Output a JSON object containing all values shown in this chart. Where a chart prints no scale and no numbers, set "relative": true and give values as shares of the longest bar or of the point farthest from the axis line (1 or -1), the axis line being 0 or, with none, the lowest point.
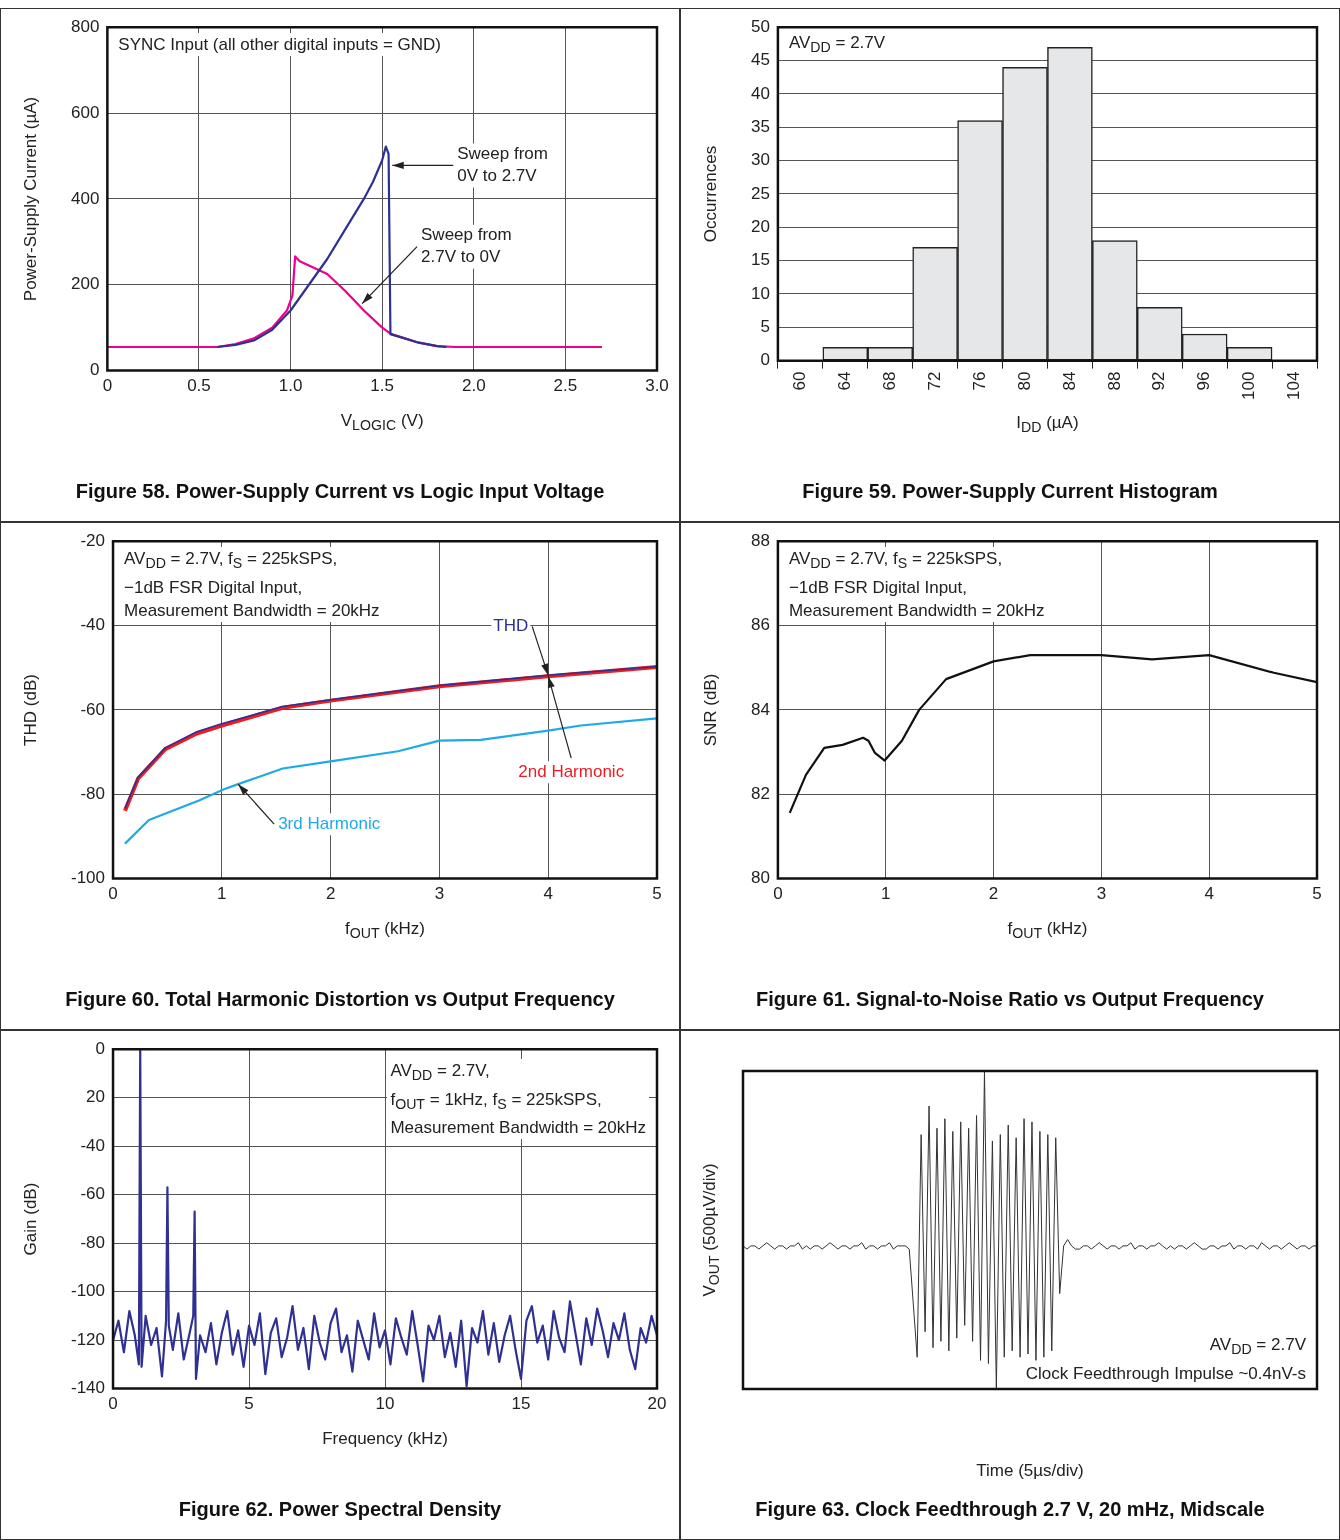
{
  "chart_data": [
    {
      "type": "line",
      "title": "Figure 58. Power-Supply Current vs Logic Input Voltage",
      "xlabel": "V$_{LOGIC}$ (V)",
      "ylabel": "Power-Supply Current (µA)",
      "series": [
        {
          "color": "#2e3192",
          "x": [
            0.6,
            0.7,
            0.8,
            0.9,
            1.0,
            1.1,
            1.2,
            1.3,
            1.4,
            1.45,
            1.5,
            1.52,
            1.535,
            1.545,
            1.6,
            1.7,
            1.8,
            1.85
          ],
          "values": [
            55,
            60,
            70,
            95,
            140,
            200,
            260,
            330,
            400,
            440,
            490,
            522,
            505,
            85,
            78,
            65,
            57,
            55
          ]
        },
        {
          "color": "#ec008c",
          "x": [
            0,
            0.6,
            0.7,
            0.8,
            0.9,
            0.98,
            1.01,
            1.025,
            1.05,
            1.1,
            1.2,
            1.3,
            1.4,
            1.5,
            1.55,
            1.7,
            1.8,
            1.9,
            2.7
          ],
          "values": [
            55,
            55,
            62,
            75,
            100,
            140,
            175,
            266,
            255,
            245,
            225,
            185,
            140,
            100,
            85,
            65,
            57,
            55,
            55
          ]
        }
      ],
      "xlim": [
        0,
        3
      ],
      "xticks": [
        0,
        0.5,
        {
          "value": 1,
          "label": "1.0"
        },
        1.5,
        {
          "value": 2,
          "label": "2.0"
        },
        2.5,
        {
          "value": 3,
          "label": "3.0"
        }
      ],
      "ylim": [
        0,
        800
      ],
      "yticks": [
        0,
        200,
        400,
        600,
        800
      ],
      "grid": true,
      "marker": "none",
      "annotations": [
        "SYNC Input (all other digital inputs = GND)",
        {
          "text": "Sweep from\n0V to 2.7V",
          "x": 1.555,
          "y": 478
        },
        {
          "text": "Sweep from\n2.7V to 0V",
          "x": 1.39,
          "y": 156
        }
      ]
    },
    {
      "type": "bar",
      "title": "Figure 59. Power-Supply Current Histogram",
      "xlabel": "I$_{DD}$ (µA)",
      "ylabel": "Occurrences",
      "categories": [
        "60",
        "64",
        "68",
        "72",
        "76",
        "80",
        "84",
        "88",
        "92",
        "96",
        "100",
        "104"
      ],
      "values": [
        0,
        2,
        2,
        17,
        36,
        44,
        47,
        18,
        8,
        4,
        2,
        0
      ],
      "color": "#e6e7e9",
      "ylim": [
        0,
        50
      ],
      "yticks": [
        0,
        5,
        10,
        15,
        20,
        25,
        30,
        35,
        40,
        45,
        50
      ],
      "grid": "y",
      "annotations": [
        "AV$_{DD}$ = 2.7V"
      ]
    },
    {
      "type": "line",
      "title": "Figure 60. Total Harmonic Distortion vs Output Frequency",
      "xlabel": "f$_{OUT}$ (kHz)",
      "ylabel": "THD (dB)",
      "x": [
        0.11,
        0.23,
        0.48,
        0.77,
        1.0,
        1.56,
        2.0,
        3.0,
        4.0,
        5.0
      ],
      "series": [
        {
          "name": "THD",
          "color": "#2e3192",
          "values": [
            -83.3,
            -76,
            -69,
            -65.2,
            -63.3,
            -59.2,
            -57.6,
            -54.2,
            -51.8,
            -49.7
          ]
        },
        {
          "name": "2nd Harmonic",
          "color": "#ed1c24",
          "values": [
            -83.9,
            -76.3,
            -69.3,
            -65.6,
            -63.7,
            -59.5,
            -57.8,
            -54.4,
            -52,
            -49.8
          ]
        },
        {
          "name": "3rd Harmonic",
          "color": "#1eaae7",
          "x": [
            0.11,
            0.33,
            0.79,
            1.02,
            1.15,
            1.56,
            2.0,
            2.62,
            3.0,
            3.38,
            4.0,
            4.3,
            5.0
          ],
          "values": [
            -91.7,
            -86.1,
            -81.5,
            -78.8,
            -77.6,
            -73.9,
            -72.2,
            -69.8,
            -67.3,
            -67.1,
            -64.9,
            -63.7,
            -62
          ]
        }
      ],
      "xlim": [
        0,
        5
      ],
      "xticks": [
        0,
        1,
        2,
        3,
        4,
        5
      ],
      "ylim": [
        -100,
        -20
      ],
      "yticks": [
        -100,
        -80,
        -60,
        -40,
        -20
      ],
      "grid": true,
      "marker": "none",
      "annotations": [
        "AV$_{DD}$ = 2.7V, f$_{S}$ = 225kSPS,\n−1dB FSR Digital Input,\nMeasurement Bandwidth = 20kHz"
      ]
    },
    {
      "type": "line",
      "title": "Figure 61. Signal-to-Noise Ratio vs Output Frequency",
      "xlabel": "f$_{OUT}$ (kHz)",
      "ylabel": "SNR (dB)",
      "x": [
        0.11,
        0.26,
        0.43,
        0.6,
        0.79,
        0.84,
        0.9,
        0.99,
        1.15,
        1.31,
        1.56,
        2.0,
        2.34,
        3.0,
        3.47,
        4.0,
        4.6,
        5.0
      ],
      "series": [
        {
          "color": "#111111",
          "values": [
            81.56,
            82.46,
            83.1,
            83.17,
            83.34,
            83.27,
            82.98,
            82.8,
            83.27,
            84.0,
            84.73,
            85.15,
            85.3,
            85.3,
            85.2,
            85.3,
            84.88,
            84.66
          ]
        }
      ],
      "xlim": [
        0,
        5
      ],
      "xticks": [
        0,
        1,
        2,
        3,
        4,
        5
      ],
      "ylim": [
        80,
        88
      ],
      "yticks": [
        80,
        82,
        84,
        86,
        88
      ],
      "grid": true,
      "marker": "none",
      "annotations": [
        "AV$_{DD}$ = 2.7V, f$_{S}$ = 225kSPS,\n−1dB FSR Digital Input,\nMeasurement Bandwidth = 20kHz"
      ]
    },
    {
      "type": "line",
      "title": "Figure 62. Power Spectral Density",
      "xlabel": "Frequency (kHz)",
      "ylabel": "Gain (dB)",
      "x": [
        0,
        0.2,
        0.4,
        0.6,
        0.8,
        0.95,
        1.0,
        1.05,
        1.2,
        1.4,
        1.6,
        1.8,
        1.95,
        2.0,
        2.05,
        2.2,
        2.4,
        2.6,
        2.8,
        2.95,
        3.0,
        3.05,
        3.2,
        3.4,
        3.6,
        3.8,
        4.0,
        4.2,
        4.4,
        4.6,
        4.8,
        5.0,
        5.2,
        5.4,
        5.6,
        5.8,
        6.0,
        6.2,
        6.4,
        6.6,
        6.8,
        7.0,
        7.2,
        7.4,
        7.6,
        7.8,
        8.0,
        8.2,
        8.4,
        8.6,
        8.8,
        9.0,
        9.2,
        9.4,
        9.6,
        9.8,
        10.0,
        10.2,
        10.4,
        10.6,
        10.8,
        11.0,
        11.2,
        11.4,
        11.6,
        11.8,
        12.0,
        12.2,
        12.4,
        12.6,
        12.8,
        13.0,
        13.2,
        13.4,
        13.6,
        13.8,
        14.0,
        14.2,
        14.4,
        14.6,
        14.8,
        15.0,
        15.2,
        15.4,
        15.6,
        15.8,
        16.0,
        16.2,
        16.4,
        16.6,
        16.8,
        17.0,
        17.2,
        17.4,
        17.6,
        17.8,
        18.0,
        18.2,
        18.4,
        18.6,
        18.8,
        19.0,
        19.2,
        19.4,
        19.6,
        19.8,
        20.0
      ],
      "series": [
        {
          "color": "#2e3192",
          "values": [
            -120,
            -112,
            -125,
            -108,
            -118,
            -130,
            0,
            -131,
            -110,
            -122,
            -115,
            -135,
            -112,
            -57,
            -114,
            -124,
            -109,
            -128,
            -118,
            -110,
            -67,
            -136,
            -118,
            -125,
            -113,
            -130,
            -117,
            -108,
            -126,
            -116,
            -131,
            -114,
            -122,
            -109,
            -134,
            -117,
            -111,
            -127,
            -119,
            -106,
            -124,
            -115,
            -132,
            -110,
            -121,
            -128,
            -113,
            -107,
            -125,
            -118,
            -133,
            -112,
            -120,
            -128,
            -109,
            -123,
            -116,
            -130,
            -111,
            -119,
            -126,
            -108,
            -122,
            -137,
            -114,
            -120,
            -110,
            -127,
            -117,
            -131,
            -112,
            -139,
            -115,
            -121,
            -108,
            -126,
            -113,
            -129,
            -118,
            -110,
            -124,
            -136,
            -112,
            -106,
            -121,
            -114,
            -128,
            -108,
            -119,
            -125,
            -104,
            -117,
            -130,
            -111,
            -122,
            -107,
            -116,
            -127,
            -113,
            -120,
            -109,
            -124,
            -132,
            -115,
            -121,
            -110,
            -118
          ]
        }
      ],
      "xlim": [
        0,
        20
      ],
      "xticks": [
        0,
        5,
        10,
        15,
        20
      ],
      "ylim": [
        -140,
        0
      ],
      "yticks": [
        -140,
        -120,
        -100,
        -80,
        -60,
        -40,
        {
          "value": -20,
          "label": "20"
        },
        0
      ],
      "grid": true,
      "marker": "none",
      "annotations": [
        "AV$_{DD}$ = 2.7V,\nf$_{OUT}$ = 1kHz, f$_{S}$ = 225kSPS,\nMeasurement Bandwidth = 20kHz"
      ]
    },
    {
      "type": "line",
      "title": "Figure 63. Clock Feedthrough 2.7 V, 20 mHz, Midscale",
      "xlabel": "Time (5µs/div)",
      "ylabel": "V$_{OUT}$ (500µV/div)",
      "relative": true,
      "tick_labels": false,
      "marker": "none",
      "categories": [
        null,
        null,
        null,
        null,
        null,
        null,
        null,
        null,
        null,
        null,
        null,
        null,
        null,
        null,
        null,
        null,
        null,
        null,
        null,
        null,
        null,
        null,
        null,
        null,
        null,
        null,
        null,
        null,
        null,
        null,
        null,
        null,
        null,
        null,
        null,
        null,
        null,
        null,
        null,
        null,
        null,
        null,
        null,
        null,
        null,
        null,
        null,
        null,
        null,
        null,
        null,
        null,
        null,
        null,
        null,
        null,
        null,
        null,
        null,
        null,
        null,
        null,
        null,
        null,
        null,
        null,
        null,
        null,
        null,
        null,
        null,
        null,
        null,
        null,
        null,
        null,
        null,
        null,
        null,
        null,
        null,
        null,
        null,
        null,
        null,
        null,
        null,
        null,
        null,
        null,
        null,
        null,
        null,
        null,
        null,
        null,
        null,
        null,
        null,
        null,
        null,
        null,
        null,
        null,
        null,
        null,
        null,
        null,
        null,
        null,
        null,
        null,
        null,
        null,
        null,
        null,
        null,
        null,
        null,
        null,
        null,
        null,
        null,
        null,
        null,
        null,
        null,
        null,
        null,
        null,
        null,
        null,
        null,
        null,
        null,
        null,
        null,
        null,
        null,
        null,
        null,
        null,
        null,
        null,
        null,
        null
      ],
      "series": [
        {
          "color": "#333333",
          "values": [
            0.45,
            0.44,
            0.45,
            0.45,
            0.44,
            0.45,
            0.46,
            0.45,
            0.44,
            0.45,
            0.45,
            0.44,
            0.45,
            0.45,
            0.46,
            0.44,
            0.45,
            0.44,
            0.45,
            0.45,
            0.44,
            0.45,
            0.46,
            0.45,
            0.44,
            0.45,
            0.45,
            0.44,
            0.45,
            0.45,
            0.46,
            0.44,
            0.45,
            0.45,
            0.44,
            0.45,
            0.45,
            0.46,
            0.44,
            0.45,
            0.45,
            0.45,
            0.44,
            0.27,
            0.1,
            0.8,
            0.18,
            0.89,
            0.13,
            0.82,
            0.15,
            0.85,
            0.12,
            0.81,
            0.16,
            0.84,
            0.2,
            0.82,
            0.15,
            0.86,
            0.09,
            1.0,
            0.08,
            0.78,
            0.0,
            0.8,
            0.1,
            0.83,
            0.12,
            0.79,
            0.1,
            0.85,
            0.11,
            0.84,
            0.09,
            0.81,
            0.1,
            0.8,
            0.12,
            0.79,
            0.3,
            0.45,
            0.47,
            0.45,
            0.44,
            0.44,
            0.45,
            0.45,
            0.44,
            0.45,
            0.46,
            0.45,
            0.44,
            0.45,
            0.45,
            0.44,
            0.45,
            0.45,
            0.46,
            0.44,
            0.45,
            0.45,
            0.44,
            0.45,
            0.45,
            0.46,
            0.45,
            0.44,
            0.45,
            0.44,
            0.45,
            0.45,
            0.44,
            0.45,
            0.46,
            0.45,
            0.44,
            0.44,
            0.45,
            0.45,
            0.44,
            0.45,
            0.45,
            0.46,
            0.44,
            0.45,
            0.45,
            0.44,
            0.45,
            0.45,
            0.44,
            0.46,
            0.45,
            0.44,
            0.45,
            0.45,
            0.44,
            0.45,
            0.46,
            0.45,
            0.44,
            0.45,
            0.45,
            0.44,
            0.45,
            0.45
          ]
        }
      ],
      "annotations": [
        "AV$_{DD}$ = 2.7V",
        "Clock Feedthrough Impulse ~0.4nV-s"
      ]
    }
  ]
}
